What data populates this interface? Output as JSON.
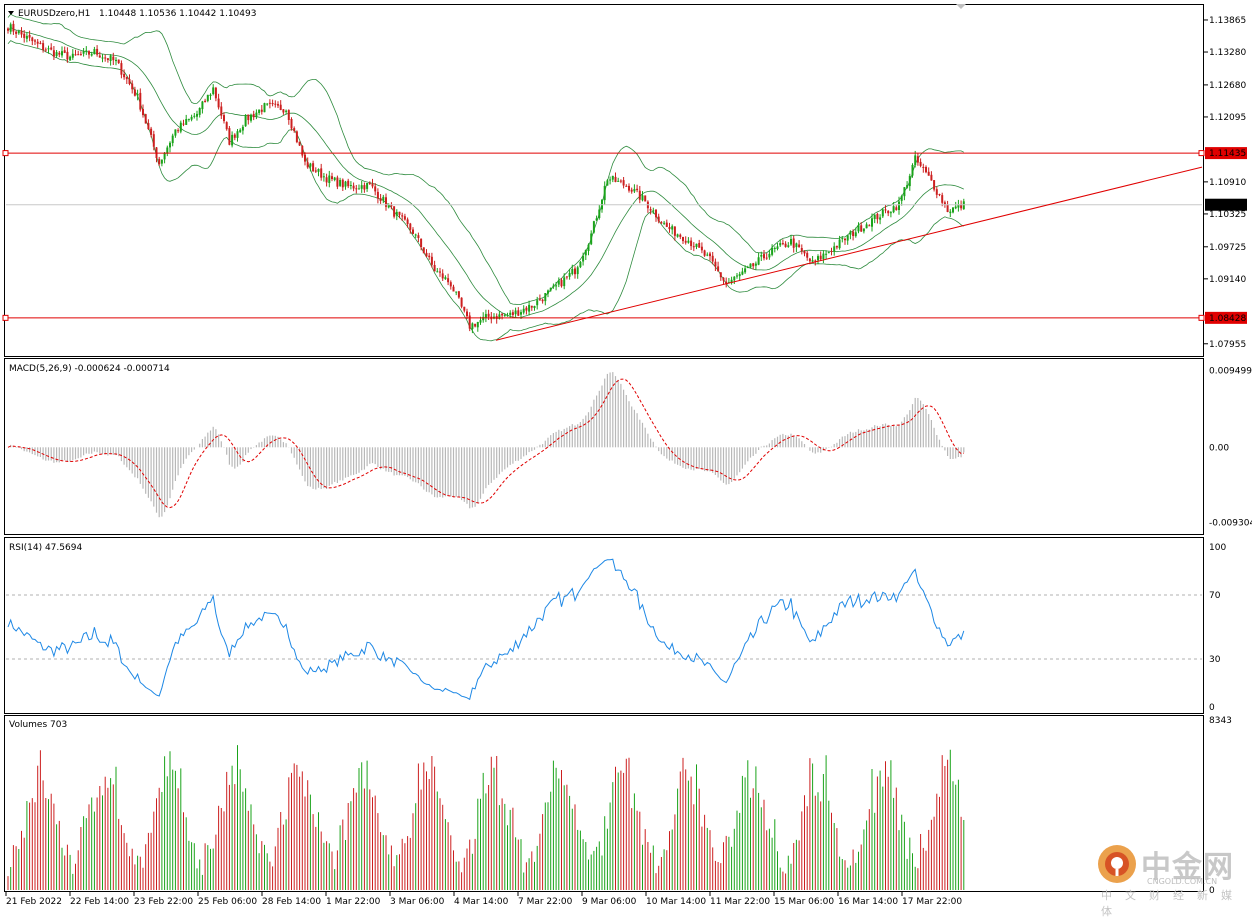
{
  "header": {
    "symbol": "EURUSDzero,H1",
    "ohlc": "1.10448 1.10536 1.10442 1.10493"
  },
  "panels": {
    "macd_label": "MACD(5,26,9) -0.000624 -0.000714",
    "rsi_label": "RSI(14) 47.5694",
    "volume_label": "Volumes 703"
  },
  "colors": {
    "bull": "#1aa31a",
    "bear": "#cc1f1f",
    "bands": "#2e8b3e",
    "level": "#e00000",
    "rsi": "#1e88e5",
    "macd_hist": "#b8b8b8",
    "macd_signal": "#e00000"
  },
  "watermark": {
    "name_cn": "中金网",
    "site": "CNGOLD.COM.CN",
    "sub_cn": "中文财经新媒体"
  },
  "chart_data": [
    {
      "type": "candlestick",
      "title": "EURUSDzero,H1",
      "indicator": "Bollinger Bands",
      "ylim": [
        1.0775,
        1.1412
      ],
      "price_ticks": [
        "1.13865",
        "1.13280",
        "1.12680",
        "1.12095",
        "1.11435",
        "1.10910",
        "1.10493",
        "1.10325",
        "1.09725",
        "1.09140",
        "1.08428",
        "1.07955"
      ],
      "y_tick_values": [
        1.13865,
        1.1328,
        1.1268,
        1.12095,
        1.1091,
        1.10325,
        1.09725,
        1.0914,
        1.07955
      ],
      "x_tick_labels": [
        "21 Feb 2022",
        "22 Feb 14:00",
        "23 Feb 22:00",
        "25 Feb 06:00",
        "28 Feb 14:00",
        "1 Mar 22:00",
        "3 Mar 06:00",
        "4 Mar 14:00",
        "7 Mar 22:00",
        "9 Mar 06:00",
        "10 Mar 14:00",
        "11 Mar 22:00",
        "15 Mar 06:00",
        "16 Mar 14:00",
        "17 Mar 22:00"
      ],
      "horizontal_levels": [
        {
          "label": "1.11435",
          "value": 1.11435
        },
        {
          "label": "1.08428",
          "value": 1.08428
        }
      ],
      "current_price": {
        "label": "1.10493",
        "value": 1.10493
      },
      "trendline": {
        "from": [
          0.0,
          1.0802
        ],
        "to": [
          1.0,
          1.1118
        ]
      },
      "anchors": [
        [
          0,
          1.1375
        ],
        [
          12,
          1.1338
        ],
        [
          18,
          1.1325
        ],
        [
          24,
          1.1318
        ],
        [
          32,
          1.1328
        ],
        [
          40,
          1.131
        ],
        [
          48,
          1.1245
        ],
        [
          56,
          1.1125
        ],
        [
          62,
          1.1185
        ],
        [
          70,
          1.1215
        ],
        [
          76,
          1.1262
        ],
        [
          82,
          1.1165
        ],
        [
          88,
          1.1205
        ],
        [
          95,
          1.1228
        ],
        [
          103,
          1.1225
        ],
        [
          110,
          1.1125
        ],
        [
          118,
          1.1098
        ],
        [
          126,
          1.1082
        ],
        [
          134,
          1.1085
        ],
        [
          142,
          1.104
        ],
        [
          150,
          1.1
        ],
        [
          158,
          1.093
        ],
        [
          164,
          1.0905
        ],
        [
          171,
          1.0828
        ],
        [
          178,
          1.0845
        ],
        [
          186,
          1.0848
        ],
        [
          194,
          1.0865
        ],
        [
          202,
          1.0895
        ],
        [
          210,
          1.093
        ],
        [
          216,
          1.0995
        ],
        [
          222,
          1.1098
        ],
        [
          230,
          1.1082
        ],
        [
          236,
          1.1055
        ],
        [
          244,
          1.1008
        ],
        [
          252,
          1.0985
        ],
        [
          260,
          1.0948
        ],
        [
          266,
          1.0905
        ],
        [
          274,
          1.093
        ],
        [
          282,
          1.0962
        ],
        [
          290,
          1.0982
        ],
        [
          298,
          1.0942
        ],
        [
          306,
          1.0972
        ],
        [
          314,
          1.1002
        ],
        [
          322,
          1.1028
        ],
        [
          330,
          1.105
        ],
        [
          336,
          1.1132
        ],
        [
          342,
          1.1092
        ],
        [
          348,
          1.104
        ],
        [
          352,
          1.1045
        ],
        [
          354,
          1.1049
        ]
      ],
      "candle_count": 355
    },
    {
      "type": "bar",
      "title": "MACD(5,26,9)",
      "values_label": "-0.000624 -0.000714",
      "ylim": [
        -0.0106,
        0.0108
      ],
      "y_ticks": [
        "0.009499",
        "0.00",
        "-0.009304"
      ],
      "y_tick_values": [
        0.009499,
        0.0,
        -0.009304
      ],
      "main": -0.000624,
      "signal": -0.000714
    },
    {
      "type": "line",
      "title": "RSI(14)",
      "last_value": 47.5694,
      "ylim": [
        0,
        100
      ],
      "y_ticks": [
        "100",
        "70",
        "30",
        "0"
      ],
      "y_tick_values": [
        100,
        70,
        30,
        0
      ],
      "levels": [
        70,
        30
      ]
    },
    {
      "type": "bar",
      "title": "Volumes",
      "last_value": 703,
      "y_ticks": [
        "8343",
        "0"
      ],
      "y_tick_values": [
        8343,
        0
      ],
      "ylim": [
        0,
        8343
      ]
    }
  ]
}
